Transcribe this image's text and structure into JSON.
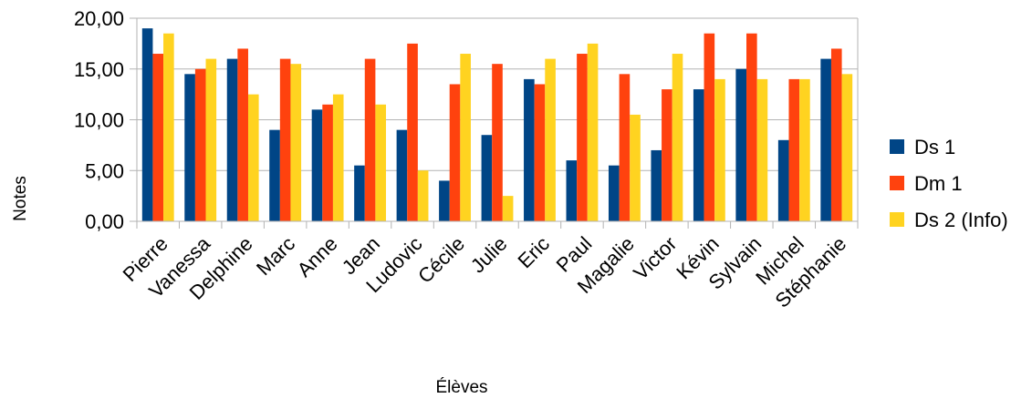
{
  "chart_data": {
    "type": "bar",
    "title": "",
    "xlabel": "Élèves",
    "ylabel": "Notes",
    "ylim": [
      0,
      20
    ],
    "yticks": [
      0,
      5,
      10,
      15,
      20
    ],
    "ytick_labels": [
      "0,00",
      "5,00",
      "10,00",
      "15,00",
      "20,00"
    ],
    "grid": true,
    "legend_position": "right",
    "categories": [
      "Pierre",
      "Vanessa",
      "Delphine",
      "Marc",
      "Anne",
      "Jean",
      "Ludovic",
      "Cécile",
      "Julie",
      "Eric",
      "Paul",
      "Magalie",
      "Victor",
      "Kévin",
      "Sylvain",
      "Michel",
      "Stéphanie"
    ],
    "series": [
      {
        "name": "Ds 1",
        "color": "#004586",
        "values": [
          19,
          14.5,
          16,
          9,
          11,
          5.5,
          9,
          4,
          8.5,
          14,
          6,
          5.5,
          7,
          13,
          15,
          8,
          16
        ]
      },
      {
        "name": "Dm 1",
        "color": "#ff420e",
        "values": [
          16.5,
          15,
          17,
          16,
          11.5,
          16,
          17.5,
          13.5,
          15.5,
          13.5,
          16.5,
          14.5,
          13,
          18.5,
          18.5,
          14,
          17
        ]
      },
      {
        "name": "Ds 2 (Info)",
        "color": "#ffd320",
        "values": [
          18.5,
          16,
          12.5,
          15.5,
          12.5,
          11.5,
          5,
          16.5,
          2.5,
          16,
          17.5,
          10.5,
          16.5,
          14,
          14,
          14,
          14.5
        ]
      }
    ]
  }
}
